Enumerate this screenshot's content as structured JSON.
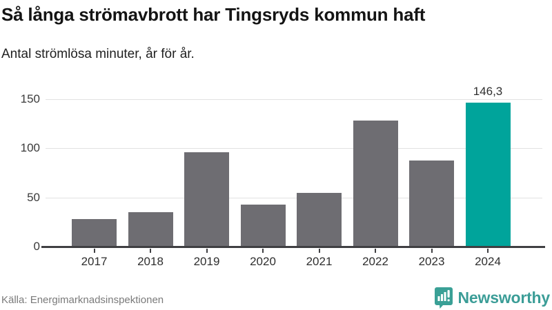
{
  "title": "Så långa strömavbrott har Tingsryds kommun haft",
  "subtitle": "Antal strömlösa minuter, år för år.",
  "source": "Källa: Energimarknadsinspektionen",
  "logo": {
    "text": "Newsworthy"
  },
  "colors": {
    "bar": "#6e6d72",
    "highlight": "#00a49b",
    "grid": "#e2e2e2",
    "axis": "#3f3f42",
    "logo_text": "#3b9d97",
    "logo_icon": "#3aa096",
    "title_text": "#141414",
    "source_text": "#7a7a7a"
  },
  "chart_data": {
    "type": "bar",
    "categories": [
      "2017",
      "2018",
      "2019",
      "2020",
      "2021",
      "2022",
      "2023",
      "2024"
    ],
    "values": [
      28,
      35,
      96,
      43,
      55,
      128,
      88,
      146.3
    ],
    "highlight_index": 7,
    "value_label": {
      "index": 7,
      "text": "146,3"
    },
    "yticks": [
      0,
      50,
      100,
      150
    ],
    "ylim": [
      0,
      163
    ],
    "grid": true,
    "legend": "none",
    "title": "Så långa strömavbrott har Tingsryds kommun haft",
    "xlabel": "",
    "ylabel": "Antal strömlösa minuter"
  }
}
